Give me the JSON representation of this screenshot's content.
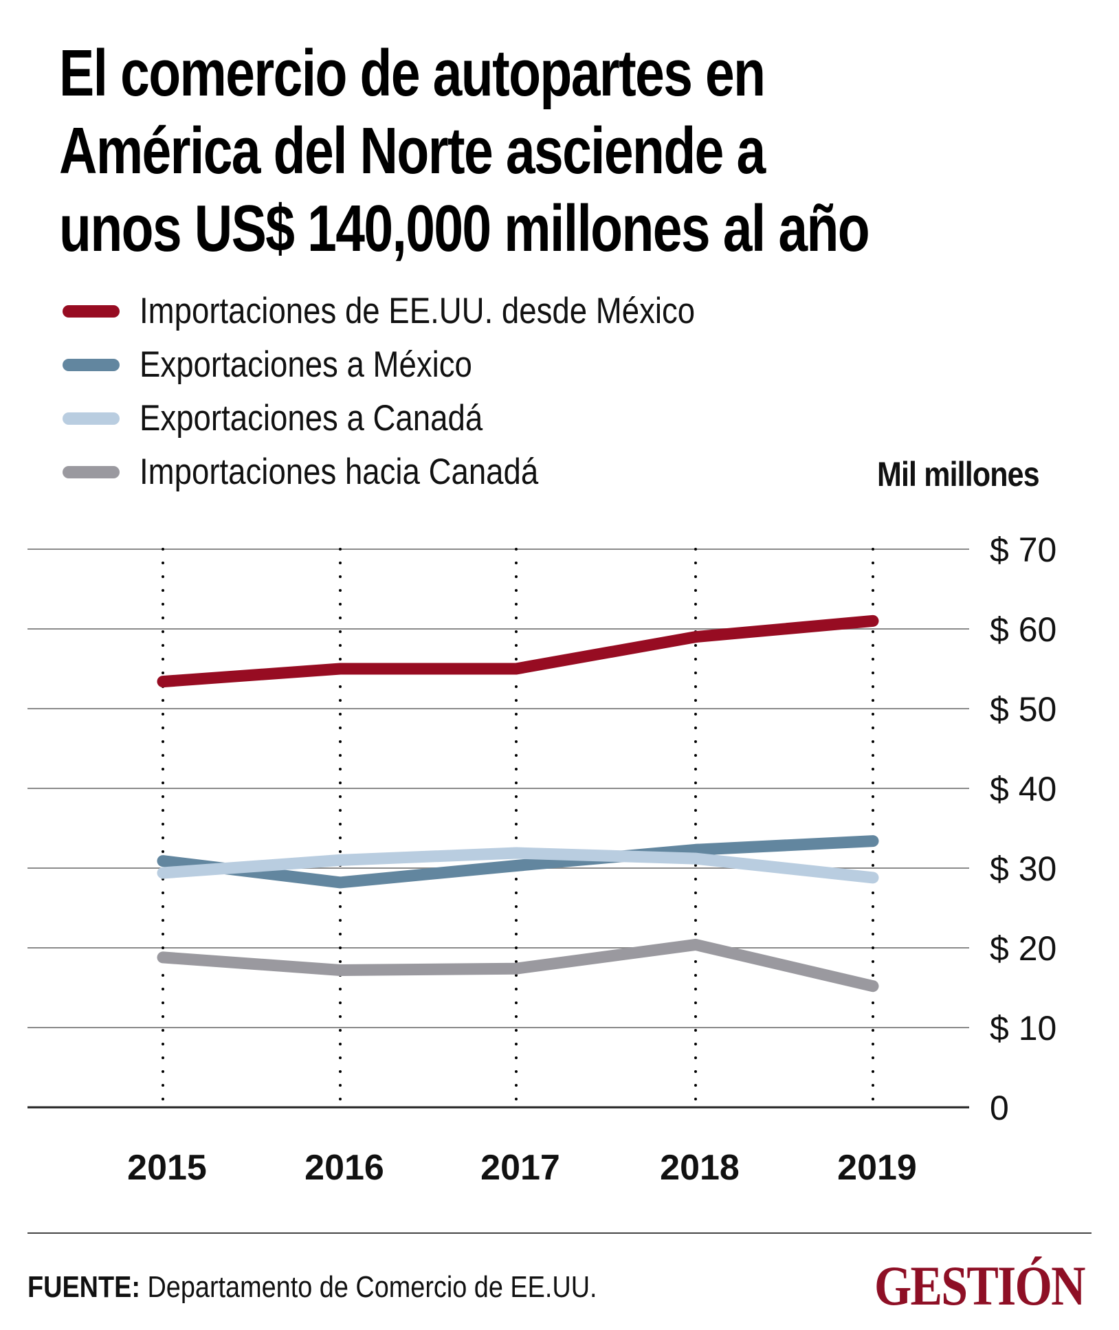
{
  "title": {
    "lines": [
      "El comercio de autopartes en",
      "América del Norte asciende a",
      "unos US$ 140,000 millones al año"
    ]
  },
  "legend": [
    {
      "label": "Importaciones de EE.UU. desde México",
      "color": "#970c22"
    },
    {
      "label": "Exportaciones a México",
      "color": "#62869f"
    },
    {
      "label": "Exportaciones a Canadá",
      "color": "#b9cde0"
    },
    {
      "label": "Importaciones hacia Canadá",
      "color": "#9a999f"
    }
  ],
  "unit_label": "Mil millones",
  "chart_data": {
    "type": "line",
    "title": "El comercio de autopartes en América del Norte asciende a unos US$ 140,000 millones al año",
    "xlabel": "",
    "ylabel": "Mil millones",
    "x": [
      "2015",
      "2016",
      "2017",
      "2018",
      "2019"
    ],
    "ylim": [
      0,
      70
    ],
    "yticks": [
      0,
      10,
      20,
      30,
      40,
      50,
      60,
      70
    ],
    "ytick_labels": [
      "0",
      "$ 10",
      "$ 20",
      "$ 30",
      "$ 40",
      "$ 50",
      "$ 60",
      "$ 70"
    ],
    "y_axis_side": "right",
    "grid": "horizontal solid, vertical dotted",
    "legend_position": "top-left",
    "series": [
      {
        "name": "Importaciones de EE.UU. desde México",
        "color": "#970c22",
        "values": [
          53.4,
          55.0,
          55.0,
          59.0,
          61.0
        ]
      },
      {
        "name": "Exportaciones a México",
        "color": "#62869f",
        "values": [
          30.9,
          28.2,
          30.3,
          32.3,
          33.4
        ]
      },
      {
        "name": "Exportaciones a Canadá",
        "color": "#b9cde0",
        "values": [
          29.4,
          31.0,
          31.9,
          31.2,
          28.8
        ]
      },
      {
        "name": "Importaciones hacia Canadá",
        "color": "#9a999f",
        "values": [
          18.8,
          17.2,
          17.4,
          20.4,
          15.2
        ]
      }
    ]
  },
  "footer": {
    "source_label": "FUENTE:",
    "source_text": " Departamento de Comercio de EE.UU.",
    "brand": "GESTIÓN",
    "brand_color": "#8e0f25"
  }
}
